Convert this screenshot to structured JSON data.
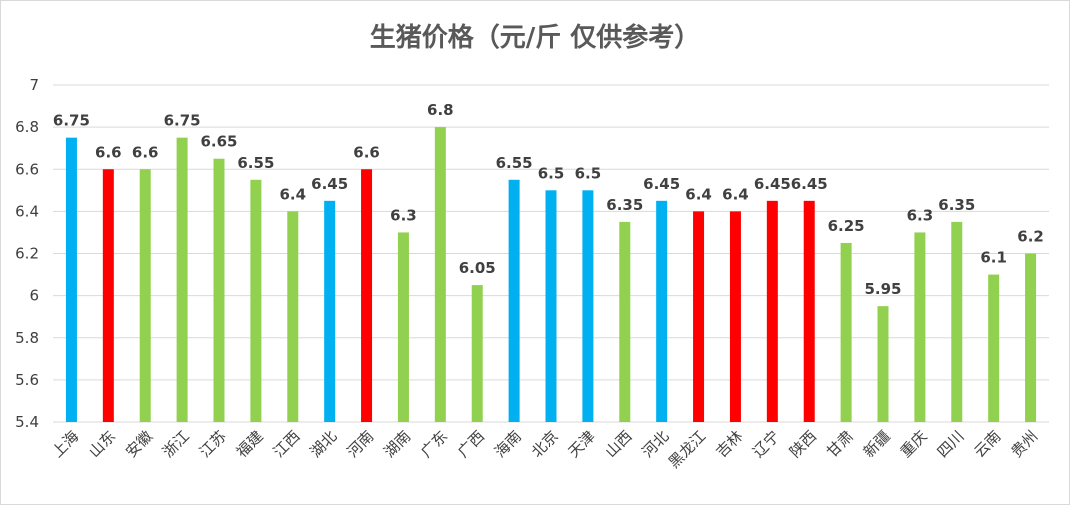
{
  "chart_data": {
    "type": "bar",
    "title": "生猪价格（元/斤 仅供参考）",
    "xlabel": "",
    "ylabel": "",
    "ylim": [
      5.4,
      7
    ],
    "yticks": [
      5.4,
      5.6,
      5.8,
      6,
      6.2,
      6.4,
      6.6,
      6.8,
      7
    ],
    "ytick_labels": [
      "5.4",
      "5.6",
      "5.8",
      "6",
      "6.2",
      "6.4",
      "6.6",
      "6.8",
      "7"
    ],
    "grid": true,
    "legend": "none",
    "categories": [
      "上海",
      "山东",
      "安徽",
      "浙江",
      "江苏",
      "福建",
      "江西",
      "湖北",
      "河南",
      "湖南",
      "广东",
      "广西",
      "海南",
      "北京",
      "天津",
      "山西",
      "河北",
      "黑龙江",
      "吉林",
      "辽宁",
      "陕西",
      "甘肃",
      "新疆",
      "重庆",
      "四川",
      "云南",
      "贵州"
    ],
    "values": [
      6.75,
      6.6,
      6.6,
      6.75,
      6.65,
      6.55,
      6.4,
      6.45,
      6.6,
      6.3,
      6.8,
      6.05,
      6.55,
      6.5,
      6.5,
      6.35,
      6.45,
      6.4,
      6.4,
      6.45,
      6.45,
      6.25,
      5.95,
      6.3,
      6.35,
      6.1,
      6.2
    ],
    "value_labels": [
      "6.75",
      "6.6",
      "6.6",
      "6.75",
      "6.65",
      "6.55",
      "6.4",
      "6.45",
      "6.6",
      "6.3",
      "6.8",
      "6.05",
      "6.55",
      "6.5",
      "6.5",
      "6.35",
      "6.45",
      "6.4",
      "6.4",
      "6.45",
      "6.45",
      "6.25",
      "5.95",
      "6.3",
      "6.35",
      "6.1",
      "6.2"
    ],
    "colors": [
      "#00b0f0",
      "#ff0000",
      "#92d050",
      "#92d050",
      "#92d050",
      "#92d050",
      "#92d050",
      "#00b0f0",
      "#ff0000",
      "#92d050",
      "#92d050",
      "#92d050",
      "#00b0f0",
      "#00b0f0",
      "#00b0f0",
      "#92d050",
      "#00b0f0",
      "#ff0000",
      "#ff0000",
      "#ff0000",
      "#ff0000",
      "#92d050",
      "#92d050",
      "#92d050",
      "#92d050",
      "#92d050",
      "#92d050"
    ],
    "grid_color": "#d9d9d9"
  }
}
